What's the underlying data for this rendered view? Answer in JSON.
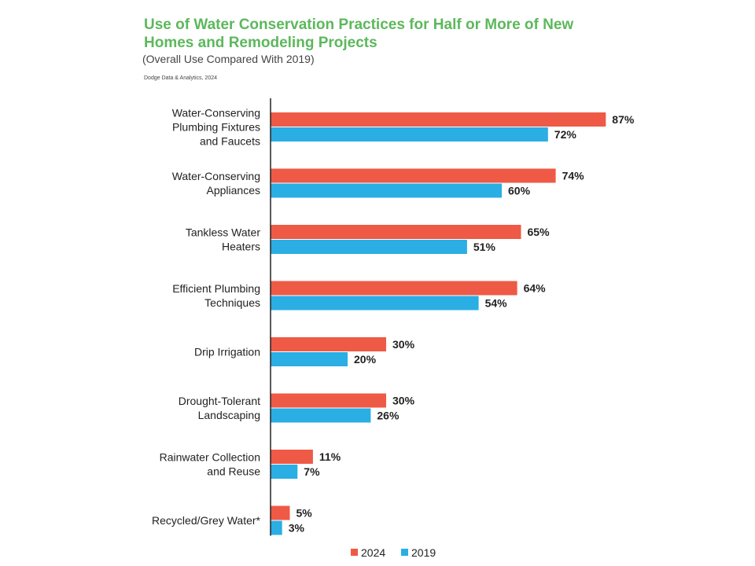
{
  "chart_data": {
    "type": "bar",
    "orientation": "horizontal",
    "title": "Use of Water Conservation Practices for Half or More of New Homes and Remodeling Projects",
    "subtitle": "(Overall Use Compared With 2019)",
    "source": "Dodge Data & Analytics, 2024",
    "categories": [
      [
        "Water-Conserving",
        "Plumbing Fixtures",
        "and Faucets"
      ],
      [
        "Water-Conserving",
        "Appliances"
      ],
      [
        "Tankless Water",
        "Heaters"
      ],
      [
        "Efficient Plumbing",
        "Techniques"
      ],
      [
        "Drip Irrigation"
      ],
      [
        "Drought-Tolerant",
        "Landscaping"
      ],
      [
        "Rainwater Collection",
        "and Reuse"
      ],
      [
        "Recycled/Grey Water*"
      ]
    ],
    "series": [
      {
        "name": "2024",
        "color": "#ee5a45",
        "values": [
          87,
          74,
          65,
          64,
          30,
          30,
          11,
          5
        ]
      },
      {
        "name": "2019",
        "color": "#2aaee4",
        "values": [
          72,
          60,
          51,
          54,
          20,
          26,
          7,
          3
        ]
      }
    ],
    "value_suffix": "%",
    "xlim": [
      0,
      100
    ],
    "grid": false,
    "legend_position": "bottom-center"
  }
}
